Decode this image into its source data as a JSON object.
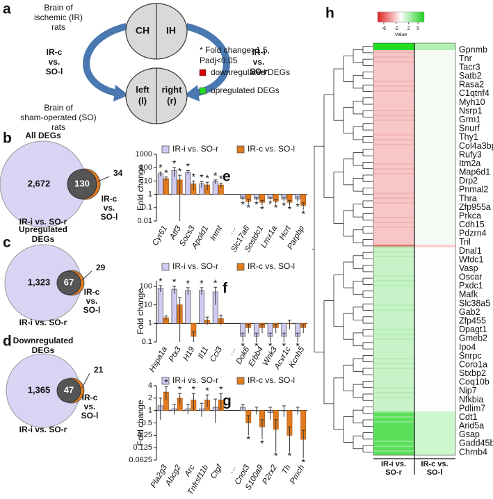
{
  "panel_a": {
    "letter": "a",
    "ischemic_lines": [
      "Brain of",
      "ischemic (IR)",
      "rats"
    ],
    "hemi_left": "CH",
    "hemi_right": "IH",
    "left_compare_lines": [
      "IR-c",
      "vs.",
      "SO-l"
    ],
    "right_compare_lines": [
      "IR-i",
      "vs.",
      "SO-r"
    ],
    "sham_left_lines": [
      "left",
      "(l)"
    ],
    "sham_right_lines": [
      "right",
      "(r)"
    ],
    "sham_lines": [
      "Brain of",
      "sham-operated (SO)",
      "rats"
    ],
    "legend": {
      "asterisk_lines": [
        "* Fold change>1.5,",
        "Padj<0.05"
      ],
      "down": "downregulated DEGs",
      "down_color": "#d40000",
      "up": "upregulated DEGs",
      "up_color": "#22dd22"
    }
  },
  "venns": [
    {
      "letter": "b",
      "title_lines": [
        "All DEGs"
      ],
      "left_only": "2,672",
      "overlap": "130",
      "right_only": "34",
      "right_label_lines": [
        "IR-c",
        "vs.",
        "SO-l"
      ],
      "left_label": "IR-i vs. SO-r"
    },
    {
      "letter": "c",
      "title_lines": [
        "Upregulated",
        "DEGs"
      ],
      "left_only": "1,323",
      "overlap": "67",
      "right_only": "29",
      "right_label_lines": [
        "IR-c",
        "vs.",
        "SO-l"
      ],
      "left_label": "IR-i vs. SO-r"
    },
    {
      "letter": "d",
      "title_lines": [
        "Downregulated",
        "DEGs"
      ],
      "left_only": "1,365",
      "overlap": "47",
      "right_only": "21",
      "right_label_lines": [
        "IR-c",
        "vs.",
        "SO-l"
      ],
      "left_label": "IR-i vs. SO-r"
    }
  ],
  "chart_data": [
    {
      "type": "bar",
      "letter": "e",
      "ylabel": "Fold change",
      "log": true,
      "ylim": [
        0.01,
        1000
      ],
      "yticks": [
        0.01,
        0.1,
        1,
        10,
        100,
        1000
      ],
      "categories": [
        "Cyr61",
        "Atf3",
        "Socs3",
        "Apold1",
        "Inmt",
        "…",
        "Slc17a6",
        "Sostdc1",
        "Lmx1a",
        "Hcrt",
        "Parpbp"
      ],
      "series": [
        {
          "name": "IR-i vs. SO-r",
          "color": "#cfcbf2",
          "values": [
            35,
            60,
            45,
            6,
            9,
            null,
            0.5,
            0.45,
            0.5,
            0.45,
            0.45
          ],
          "errors": [
            12,
            40,
            15,
            3,
            3,
            null,
            0.15,
            0.1,
            0.1,
            0.15,
            0.2
          ],
          "markers": [
            "*",
            "*",
            "*",
            "*",
            "*",
            null,
            "*",
            "*",
            "*",
            "*",
            "*"
          ]
        },
        {
          "name": "IR-c vs. SO-l",
          "color": "#e07b1f",
          "values": [
            15,
            12,
            6,
            5,
            5,
            null,
            0.3,
            0.25,
            0.3,
            0.25,
            0.15
          ],
          "errors": [
            5,
            15,
            4,
            3,
            2,
            null,
            0.1,
            0.1,
            0.1,
            0.1,
            0.08
          ],
          "markers": [
            "*",
            "*",
            "*",
            "*",
            "*",
            null,
            "*",
            "*",
            "*",
            "*",
            "*"
          ]
        }
      ]
    },
    {
      "type": "bar",
      "letter": "f",
      "ylabel": "Fold change",
      "log": true,
      "ylim": [
        0.1,
        200
      ],
      "yticks": [
        0.1,
        1,
        10,
        100
      ],
      "categories": [
        "Hspa1a",
        "Ptx3",
        "H19",
        "Il11",
        "Ccl3",
        "…",
        "Dok6",
        "Erbb4",
        "Wnk3",
        "Acvr1c",
        "Kcnh5"
      ],
      "series": [
        {
          "name": "IR-i vs. SO-r",
          "color": "#cfcbf2",
          "values": [
            80,
            70,
            60,
            60,
            50,
            null,
            0.2,
            0.2,
            0.2,
            0.2,
            0.2
          ],
          "errors": [
            30,
            30,
            25,
            25,
            40,
            null,
            0.1,
            0.1,
            0.1,
            0.1,
            0.1
          ],
          "markers": [
            "*",
            "*",
            "*",
            "*",
            "*",
            null,
            "*",
            "*",
            "*",
            "*",
            "*"
          ]
        },
        {
          "name": "IR-c vs. SO-l",
          "color": "#e07b1f",
          "values": [
            2,
            10,
            0.2,
            1.5,
            1.8,
            null,
            0.6,
            0.6,
            0.6,
            1,
            0.6
          ],
          "errors": [
            0.5,
            15,
            0.15,
            0.7,
            1,
            null,
            0.3,
            0.3,
            0.3,
            0.5,
            0.3
          ],
          "markers": [
            null,
            null,
            null,
            null,
            null,
            null,
            null,
            null,
            null,
            null,
            null
          ]
        }
      ]
    },
    {
      "type": "bar",
      "letter": "g",
      "ylabel": "Fold change",
      "log": true,
      "ylim": [
        0.0625,
        4
      ],
      "yticks": [
        0.0625,
        0.125,
        0.25,
        0.5,
        1,
        2,
        4
      ],
      "categories": [
        "Pla2g3",
        "Abcg2",
        "Arc",
        "Tnfrsf11b",
        "Ctgf",
        "…",
        "Cnot3",
        "S100a9",
        "P2rx2",
        "Th",
        "Pmch"
      ],
      "series": [
        {
          "name": "IR-i vs. SO-r",
          "color": "#cfcbf2",
          "values": [
            1.3,
            1.1,
            1.1,
            1.1,
            1.2,
            null,
            1.2,
            1,
            0.9,
            1,
            1
          ],
          "errors": [
            0.7,
            0.3,
            0.3,
            0.4,
            0.7,
            null,
            0.2,
            0.2,
            0.3,
            0.3,
            0.2
          ],
          "markers": [
            null,
            null,
            null,
            null,
            null,
            null,
            null,
            null,
            null,
            null,
            null
          ]
        },
        {
          "name": "IR-c vs. SO-l",
          "color": "#e07b1f",
          "values": [
            2.8,
            2,
            1.8,
            1.8,
            1.8,
            null,
            0.5,
            0.4,
            0.35,
            0.25,
            0.2
          ],
          "errors": [
            1,
            0.6,
            0.8,
            0.6,
            0.8,
            null,
            0.25,
            0.2,
            0.25,
            0.15,
            0.13
          ],
          "markers": [
            "*",
            "*",
            "*",
            "*",
            "*",
            null,
            "*",
            "*",
            "*",
            "*",
            "*"
          ]
        }
      ]
    }
  ],
  "heatmap": {
    "letter": "h",
    "colorbar": {
      "label": "Value",
      "ticks": [
        -6,
        -2,
        2,
        5
      ],
      "lim": [
        -8,
        7
      ]
    },
    "columns": [
      [
        "IR-i vs.",
        "SO-r"
      ],
      [
        "IR-c vs.",
        "SO-l"
      ]
    ],
    "genes": [
      "Gpnmb",
      "Tnr",
      "Tacr3",
      "Satb2",
      "Rasa2",
      "C1qtnf4",
      "Myh10",
      "Nsrp1",
      "Grm1",
      "Snurf",
      "Thy1",
      "Col4a3bp",
      "Rufy3",
      "Itm2a",
      "Map6d1",
      "Drp2",
      "Pnmal2",
      "Thra",
      "Zfp955a",
      "Prkca",
      "Cdh15",
      "Pdzrn4",
      "Tril",
      "Dnal1",
      "Wfdc1",
      "Vasp",
      "Oscar",
      "Pxdc1",
      "Mafk",
      "Slc38a5",
      "Gab2",
      "Zfp455",
      "Dpagt1",
      "Gmeb2",
      "Ipo4",
      "Snrpc",
      "Coro1a",
      "Stxbp2",
      "Coq10b",
      "Nip7",
      "Nfkbia",
      "Pdlim7",
      "Cdt1",
      "Arid5a",
      "Gsap",
      "Gadd45b",
      "Chrnb4"
    ]
  }
}
